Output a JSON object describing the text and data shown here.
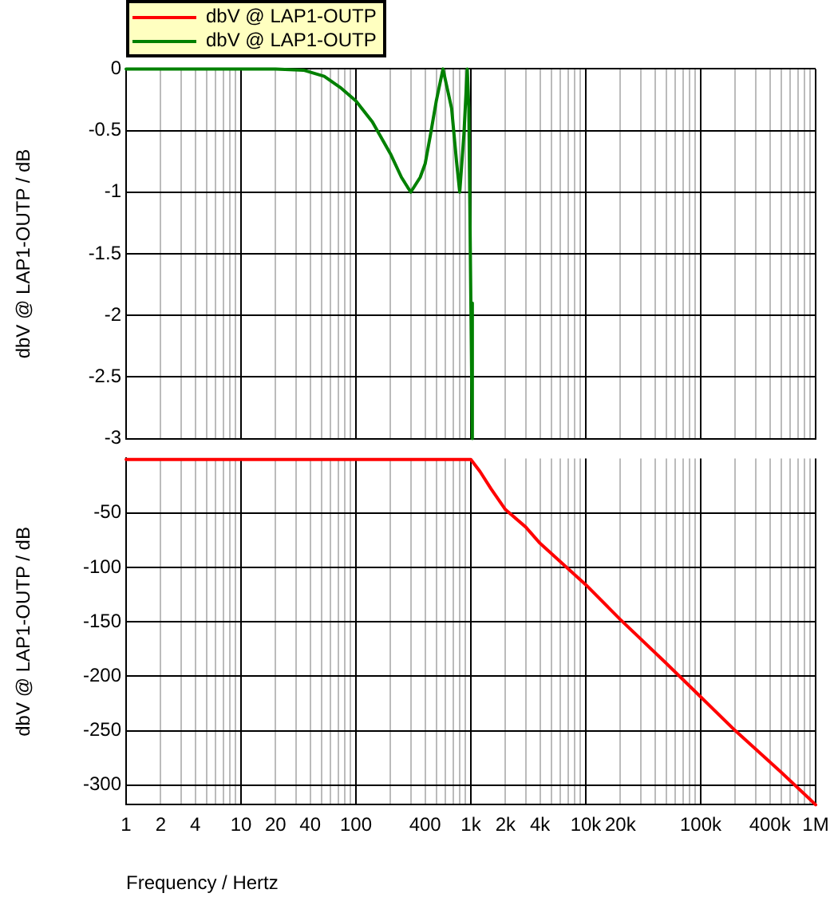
{
  "chart_data": [
    {
      "type": "line",
      "ylabel": "dbV @ LAP1-OUTP / dB",
      "log": "x",
      "grid": true,
      "legend": "top left",
      "marker": "none",
      "line_style": "solid",
      "tick_labels": "y",
      "xlim": [
        1,
        1000000
      ],
      "xticks": [
        {
          "value": 1,
          "label": null
        },
        {
          "value": 2,
          "label": null
        },
        {
          "value": 3,
          "label": null
        },
        {
          "value": 4,
          "label": null
        },
        {
          "value": 5,
          "label": null
        },
        {
          "value": 6,
          "label": null
        },
        {
          "value": 7,
          "label": null
        },
        {
          "value": 8,
          "label": null
        },
        {
          "value": 9,
          "label": null
        },
        {
          "value": 10,
          "label": null
        },
        {
          "value": 20,
          "label": null
        },
        {
          "value": 30,
          "label": null
        },
        {
          "value": 40,
          "label": null
        },
        {
          "value": 50,
          "label": null
        },
        {
          "value": 60,
          "label": null
        },
        {
          "value": 70,
          "label": null
        },
        {
          "value": 80,
          "label": null
        },
        {
          "value": 90,
          "label": null
        },
        {
          "value": 100,
          "label": null
        },
        {
          "value": 200,
          "label": null
        },
        {
          "value": 300,
          "label": null
        },
        {
          "value": 400,
          "label": null
        },
        {
          "value": 500,
          "label": null
        },
        {
          "value": 600,
          "label": null
        },
        {
          "value": 700,
          "label": null
        },
        {
          "value": 800,
          "label": null
        },
        {
          "value": 900,
          "label": null
        },
        {
          "value": 1000,
          "label": null
        },
        {
          "value": 2000,
          "label": null
        },
        {
          "value": 3000,
          "label": null
        },
        {
          "value": 4000,
          "label": null
        },
        {
          "value": 5000,
          "label": null
        },
        {
          "value": 6000,
          "label": null
        },
        {
          "value": 7000,
          "label": null
        },
        {
          "value": 8000,
          "label": null
        },
        {
          "value": 9000,
          "label": null
        },
        {
          "value": 10000,
          "label": null
        },
        {
          "value": 20000,
          "label": null
        },
        {
          "value": 30000,
          "label": null
        },
        {
          "value": 40000,
          "label": null
        },
        {
          "value": 50000,
          "label": null
        },
        {
          "value": 60000,
          "label": null
        },
        {
          "value": 70000,
          "label": null
        },
        {
          "value": 80000,
          "label": null
        },
        {
          "value": 90000,
          "label": null
        },
        {
          "value": 100000,
          "label": null
        },
        {
          "value": 200000,
          "label": null
        },
        {
          "value": 300000,
          "label": null
        },
        {
          "value": 400000,
          "label": null
        },
        {
          "value": 500000,
          "label": null
        },
        {
          "value": 600000,
          "label": null
        },
        {
          "value": 700000,
          "label": null
        },
        {
          "value": 800000,
          "label": null
        },
        {
          "value": 900000,
          "label": null
        },
        {
          "value": 1000000,
          "label": null
        }
      ],
      "ylim": [
        -3,
        0
      ],
      "yticks": [
        0,
        -0.5,
        -1,
        -1.5,
        -2,
        -2.5,
        -3
      ],
      "series": [
        {
          "name": "dbV @ LAP1-OUTP",
          "color": "#008000",
          "x": [
            1,
            10,
            20,
            35,
            53,
            73,
            100,
            139,
            200,
            249,
            300,
            362,
            400,
            446,
            500,
            572,
            680,
            750,
            800,
            870,
            930,
            960,
            1000,
            1030
          ],
          "values": [
            0,
            0,
            0,
            -0.01,
            -0.06,
            -0.15,
            -0.26,
            -0.43,
            -0.69,
            -0.88,
            -1.0,
            -0.88,
            -0.77,
            -0.53,
            -0.26,
            0,
            -0.32,
            -0.75,
            -1.0,
            -0.53,
            0,
            -0.32,
            -1.9,
            -3
          ]
        }
      ]
    },
    {
      "type": "line",
      "xlabel": "Frequency / Hertz",
      "ylabel": "dbV @ LAP1-OUTP / dB",
      "log": "x",
      "grid": true,
      "legend": "top left",
      "marker": "none",
      "line_style": "solid",
      "xlim": [
        1,
        1000000
      ],
      "xticks": [
        {
          "value": 1,
          "label": "1"
        },
        {
          "value": 2,
          "label": "2"
        },
        {
          "value": 3,
          "label": null
        },
        {
          "value": 4,
          "label": "4"
        },
        {
          "value": 5,
          "label": null
        },
        {
          "value": 6,
          "label": null
        },
        {
          "value": 7,
          "label": null
        },
        {
          "value": 8,
          "label": null
        },
        {
          "value": 9,
          "label": null
        },
        {
          "value": 10,
          "label": "10"
        },
        {
          "value": 20,
          "label": "20"
        },
        {
          "value": 30,
          "label": null
        },
        {
          "value": 40,
          "label": "40"
        },
        {
          "value": 50,
          "label": null
        },
        {
          "value": 60,
          "label": null
        },
        {
          "value": 70,
          "label": null
        },
        {
          "value": 80,
          "label": null
        },
        {
          "value": 90,
          "label": null
        },
        {
          "value": 100,
          "label": "100"
        },
        {
          "value": 200,
          "label": null
        },
        {
          "value": 300,
          "label": null
        },
        {
          "value": 400,
          "label": "400"
        },
        {
          "value": 500,
          "label": null
        },
        {
          "value": 600,
          "label": null
        },
        {
          "value": 700,
          "label": null
        },
        {
          "value": 800,
          "label": null
        },
        {
          "value": 900,
          "label": null
        },
        {
          "value": 1000,
          "label": "1k"
        },
        {
          "value": 2000,
          "label": "2k"
        },
        {
          "value": 3000,
          "label": null
        },
        {
          "value": 4000,
          "label": "4k"
        },
        {
          "value": 5000,
          "label": null
        },
        {
          "value": 6000,
          "label": null
        },
        {
          "value": 7000,
          "label": null
        },
        {
          "value": 8000,
          "label": null
        },
        {
          "value": 9000,
          "label": null
        },
        {
          "value": 10000,
          "label": "10k"
        },
        {
          "value": 20000,
          "label": "20k"
        },
        {
          "value": 30000,
          "label": null
        },
        {
          "value": 40000,
          "label": null
        },
        {
          "value": 50000,
          "label": null
        },
        {
          "value": 60000,
          "label": null
        },
        {
          "value": 70000,
          "label": null
        },
        {
          "value": 80000,
          "label": null
        },
        {
          "value": 90000,
          "label": null
        },
        {
          "value": 100000,
          "label": "100k"
        },
        {
          "value": 200000,
          "label": null
        },
        {
          "value": 300000,
          "label": null
        },
        {
          "value": 400000,
          "label": "400k"
        },
        {
          "value": 500000,
          "label": null
        },
        {
          "value": 600000,
          "label": null
        },
        {
          "value": 700000,
          "label": null
        },
        {
          "value": 800000,
          "label": null
        },
        {
          "value": 900000,
          "label": null
        },
        {
          "value": 1000000,
          "label": "1M"
        }
      ],
      "ylim": [
        -318,
        0
      ],
      "yticks": [
        -50,
        -100,
        -150,
        -200,
        -250,
        -300
      ],
      "series": [
        {
          "name": "dbV @ LAP1-OUTP",
          "color": "#ff0000",
          "x": [
            1,
            10,
            100,
            200,
            1000,
            1200,
            1500,
            2000,
            3000,
            4000,
            10000,
            20000,
            50000,
            100000,
            200000,
            500000,
            1000000
          ],
          "values": [
            -1,
            -1,
            -1,
            -1,
            -1,
            -12,
            -28,
            -47,
            -63,
            -78,
            -116,
            -148,
            -188,
            -219,
            -250,
            -288,
            -318
          ]
        }
      ]
    }
  ]
}
